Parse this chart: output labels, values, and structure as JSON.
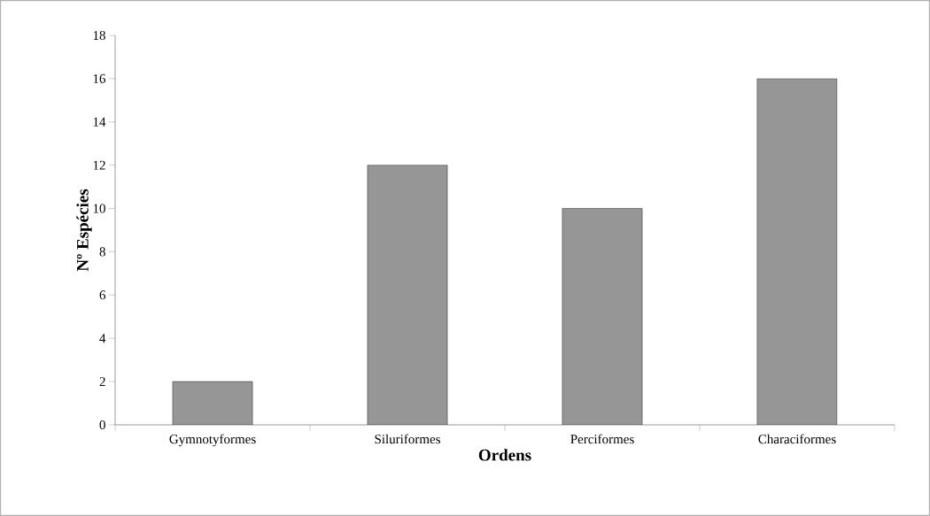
{
  "chart_data": {
    "type": "bar",
    "xlabel": "Ordens",
    "ylabel": "Nº Espécies",
    "categories": [
      "Gymnotyformes",
      "Siluriformes",
      "Perciformes",
      "Characiformes"
    ],
    "values": [
      2,
      12,
      10,
      16
    ],
    "color": "#969696",
    "ylim": [
      0,
      18
    ],
    "yticks": [
      0,
      2,
      4,
      6,
      8,
      10,
      12,
      14,
      16,
      18
    ],
    "grid": false
  }
}
